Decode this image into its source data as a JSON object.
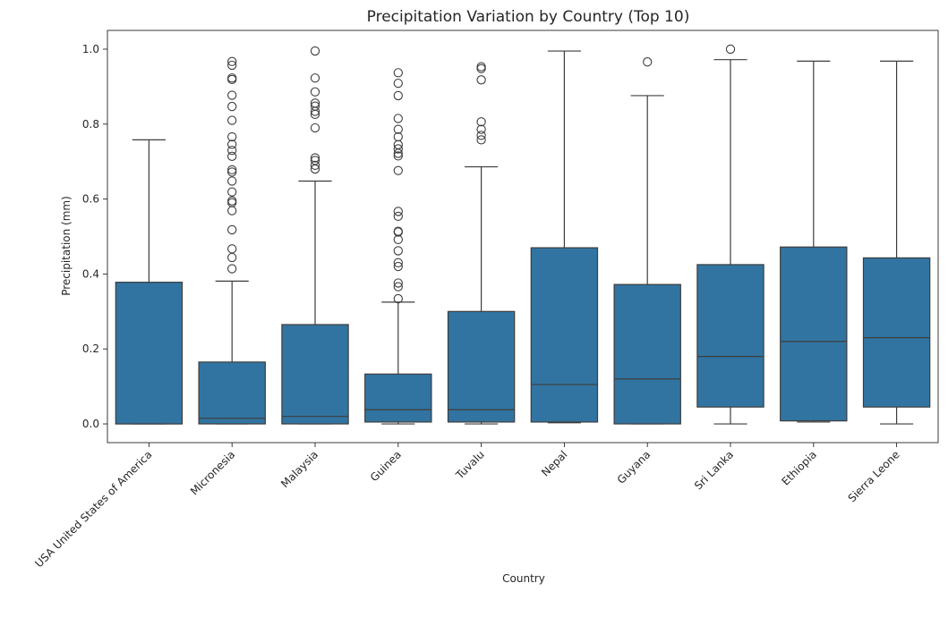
{
  "colors": {
    "box_fill": "#3274a1",
    "stroke": "#3d3d3d",
    "background": "#ffffff"
  },
  "chart_data": {
    "type": "box",
    "title": "Precipitation Variation by Country (Top 10)",
    "xlabel": "Country",
    "ylabel": "Precipitation (mm)",
    "ylim": [
      -0.05,
      1.05
    ],
    "yticks": [
      0.0,
      0.2,
      0.4,
      0.6,
      0.8,
      1.0
    ],
    "ytick_labels": [
      "0.0",
      "0.2",
      "0.4",
      "0.6",
      "0.8",
      "1.0"
    ],
    "grid": false,
    "legend": "none",
    "categories": [
      "USA United States of America",
      "Micronesia",
      "Malaysia",
      "Guinea",
      "Tuvalu",
      "Nepal",
      "Guyana",
      "Sri Lanka",
      "Ethiopia",
      "Sierra Leone"
    ],
    "boxes": [
      {
        "whisker_low": 0.0,
        "q1": 0.0,
        "median": 0.0,
        "q3": 0.378,
        "whisker_high": 0.758,
        "outliers": []
      },
      {
        "whisker_low": 0.0,
        "q1": 0.0,
        "median": 0.015,
        "q3": 0.165,
        "whisker_high": 0.381,
        "outliers": [
          0.414,
          0.444,
          0.467,
          0.518,
          0.569,
          0.59,
          0.595,
          0.619,
          0.648,
          0.672,
          0.678,
          0.714,
          0.73,
          0.746,
          0.766,
          0.81,
          0.847,
          0.877,
          0.919,
          0.923,
          0.957,
          0.967
        ]
      },
      {
        "whisker_low": 0.0,
        "q1": 0.0,
        "median": 0.02,
        "q3": 0.265,
        "whisker_high": 0.648,
        "outliers": [
          0.68,
          0.69,
          0.703,
          0.71,
          0.79,
          0.826,
          0.834,
          0.848,
          0.856,
          0.886,
          0.923,
          0.995
        ]
      },
      {
        "whisker_low": 0.0,
        "q1": 0.005,
        "median": 0.038,
        "q3": 0.133,
        "whisker_high": 0.325,
        "outliers": [
          0.334,
          0.366,
          0.376,
          0.42,
          0.43,
          0.462,
          0.492,
          0.512,
          0.514,
          0.554,
          0.567,
          0.676,
          0.715,
          0.722,
          0.734,
          0.745,
          0.766,
          0.786,
          0.815,
          0.876,
          0.909,
          0.937
        ]
      },
      {
        "whisker_low": 0.0,
        "q1": 0.005,
        "median": 0.038,
        "q3": 0.3,
        "whisker_high": 0.686,
        "outliers": [
          0.758,
          0.77,
          0.786,
          0.806,
          0.918,
          0.948,
          0.953
        ]
      },
      {
        "whisker_low": 0.003,
        "q1": 0.005,
        "median": 0.105,
        "q3": 0.47,
        "whisker_high": 0.995,
        "outliers": []
      },
      {
        "whisker_low": 0.0,
        "q1": 0.0,
        "median": 0.12,
        "q3": 0.372,
        "whisker_high": 0.876,
        "outliers": [
          0.966
        ]
      },
      {
        "whisker_low": 0.0,
        "q1": 0.045,
        "median": 0.18,
        "q3": 0.425,
        "whisker_high": 0.972,
        "outliers": [
          1.0
        ]
      },
      {
        "whisker_low": 0.005,
        "q1": 0.008,
        "median": 0.22,
        "q3": 0.472,
        "whisker_high": 0.968,
        "outliers": []
      },
      {
        "whisker_low": 0.0,
        "q1": 0.045,
        "median": 0.23,
        "q3": 0.443,
        "whisker_high": 0.968,
        "outliers": []
      }
    ]
  }
}
